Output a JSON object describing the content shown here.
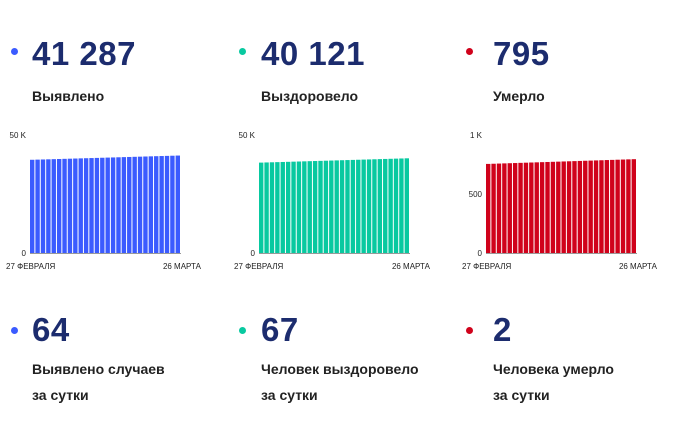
{
  "panels": [
    {
      "color": "#3b5bff",
      "total": "41 287",
      "total_label": "Выявлено",
      "daily": "64",
      "daily_label_1": "Выявлено случаев",
      "daily_label_2": "за сутки"
    },
    {
      "color": "#08c9a0",
      "total": "40 121",
      "total_label": "Выздоровело",
      "daily": "67",
      "daily_label_1": "Человек выздоровело",
      "daily_label_2": "за сутки"
    },
    {
      "color": "#d0021b",
      "total": "795",
      "total_label": "Умерло",
      "daily": "2",
      "daily_label_1": "Человека умерло",
      "daily_label_2": "за сутки"
    }
  ],
  "chart_data": [
    {
      "type": "bar",
      "color": "#3b5bff",
      "x_start_label": "27 ФЕВРАЛЯ",
      "x_end_label": "26 МАРТА",
      "yticks": [
        {
          "value": 0,
          "label": "0"
        },
        {
          "value": 50000,
          "label": "50 K"
        }
      ],
      "ylim": [
        0,
        50000
      ],
      "n_bars": 28,
      "start_value": 39500,
      "end_value": 41287
    },
    {
      "type": "bar",
      "color": "#08c9a0",
      "x_start_label": "27 ФЕВРАЛЯ",
      "x_end_label": "26 МАРТА",
      "yticks": [
        {
          "value": 0,
          "label": "0"
        },
        {
          "value": 50000,
          "label": "50 K"
        }
      ],
      "ylim": [
        0,
        50000
      ],
      "n_bars": 28,
      "start_value": 38300,
      "end_value": 40121
    },
    {
      "type": "bar",
      "color": "#d0021b",
      "x_start_label": "27 ФЕВРАЛЯ",
      "x_end_label": "26 МАРТА",
      "yticks": [
        {
          "value": 0,
          "label": "0"
        },
        {
          "value": 500,
          "label": "500"
        },
        {
          "value": 1000,
          "label": "1 K"
        }
      ],
      "ylim": [
        0,
        1000
      ],
      "n_bars": 28,
      "start_value": 755,
      "end_value": 795
    }
  ]
}
